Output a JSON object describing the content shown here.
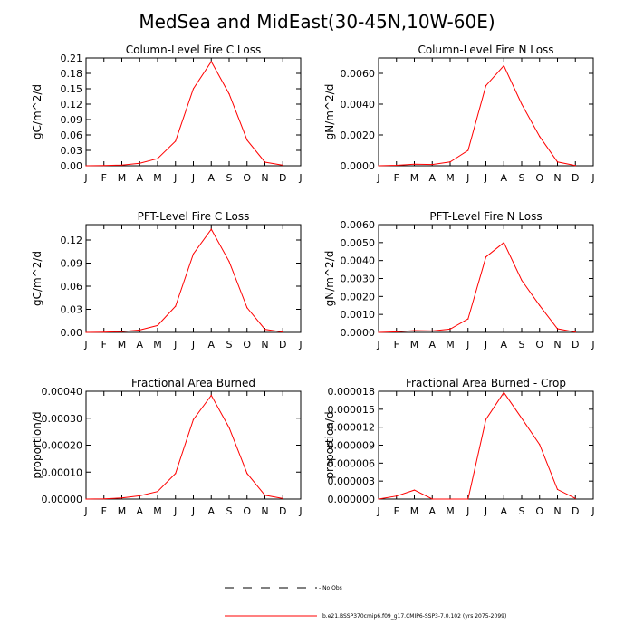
{
  "title": "MedSea and MidEast(30-45N,10W-60E)",
  "legend": {
    "obs_label": "No Obs",
    "model_label": "b.e21.BSSP370cmip6.f09_g17.CMIP6-SSP3-7.0.102 (yrs 2075-2099)",
    "model_color": "#ff0000",
    "obs_color": "#000000"
  },
  "chart_data": [
    {
      "type": "line",
      "title": "Column-Level Fire C Loss",
      "ylabel": "gC/m^2/d",
      "xticks": [
        "J",
        "F",
        "M",
        "A",
        "M",
        "J",
        "J",
        "A",
        "S",
        "O",
        "N",
        "D",
        "J"
      ],
      "ylim": [
        0,
        0.21
      ],
      "yticks": [
        "0.00",
        "0.03",
        "0.06",
        "0.09",
        "0.12",
        "0.15",
        "0.18",
        "0.21"
      ],
      "series": [
        {
          "values": [
            0.0,
            0.0005,
            0.0015,
            0.005,
            0.014,
            0.048,
            0.15,
            0.203,
            0.14,
            0.05,
            0.007,
            0.001
          ]
        }
      ]
    },
    {
      "type": "line",
      "title": "Column-Level Fire N Loss",
      "ylabel": "gN/m^2/d",
      "xticks": [
        "J",
        "F",
        "M",
        "A",
        "M",
        "J",
        "J",
        "A",
        "S",
        "O",
        "N",
        "D",
        "J"
      ],
      "ylim": [
        0,
        0.007
      ],
      "yticks": [
        "0.0000",
        "0.0020",
        "0.0040",
        "0.0060"
      ],
      "series": [
        {
          "values": [
            0.0,
            3e-05,
            0.0001,
            8e-05,
            0.00025,
            0.001,
            0.0052,
            0.0065,
            0.004,
            0.0019,
            0.00025,
            2e-05
          ]
        }
      ]
    },
    {
      "type": "line",
      "title": "PFT-Level Fire C Loss",
      "ylabel": "gC/m^2/d",
      "xticks": [
        "J",
        "F",
        "M",
        "A",
        "M",
        "J",
        "J",
        "A",
        "S",
        "O",
        "N",
        "D",
        "J"
      ],
      "ylim": [
        0,
        0.14
      ],
      "yticks": [
        "0.00",
        "0.03",
        "0.06",
        "0.09",
        "0.12"
      ],
      "series": [
        {
          "values": [
            0.0,
            0.0003,
            0.001,
            0.003,
            0.009,
            0.034,
            0.102,
            0.134,
            0.092,
            0.032,
            0.004,
            0.0005
          ]
        }
      ]
    },
    {
      "type": "line",
      "title": "PFT-Level Fire N Loss",
      "ylabel": "gN/m^2/d",
      "xticks": [
        "J",
        "F",
        "M",
        "A",
        "M",
        "J",
        "J",
        "A",
        "S",
        "O",
        "N",
        "D",
        "J"
      ],
      "ylim": [
        0,
        0.006
      ],
      "yticks": [
        "0.0000",
        "0.0010",
        "0.0020",
        "0.0030",
        "0.0040",
        "0.0050",
        "0.0060"
      ],
      "series": [
        {
          "values": [
            0.0,
            3e-05,
            0.0001,
            8e-05,
            0.00018,
            0.00075,
            0.0042,
            0.005,
            0.0029,
            0.0015,
            0.0002,
            2e-05
          ]
        }
      ]
    },
    {
      "type": "line",
      "title": "Fractional Area Burned",
      "ylabel": "proportion/d",
      "xticks": [
        "J",
        "F",
        "M",
        "A",
        "M",
        "J",
        "J",
        "A",
        "S",
        "O",
        "N",
        "D",
        "J"
      ],
      "ylim": [
        0,
        0.0004
      ],
      "yticks": [
        "0.00000",
        "0.00010",
        "0.00020",
        "0.00030",
        "0.00040"
      ],
      "series": [
        {
          "values": [
            0.0,
            1e-06,
            4e-06,
            1.2e-05,
            2.8e-05,
            9.5e-05,
            0.000295,
            0.000385,
            0.000265,
            9.5e-05,
            1.4e-05,
            2e-06
          ]
        }
      ]
    },
    {
      "type": "line",
      "title": "Fractional Area Burned - Crop",
      "ylabel": "proportion/d",
      "xticks": [
        "J",
        "F",
        "M",
        "A",
        "M",
        "J",
        "J",
        "A",
        "S",
        "O",
        "N",
        "D",
        "J"
      ],
      "ylim": [
        0,
        1.8e-05
      ],
      "yticks": [
        "0.000000",
        "0.000003",
        "0.000006",
        "0.000009",
        "0.000012",
        "0.000015",
        "0.000018"
      ],
      "series": [
        {
          "values": [
            0.0,
            5e-07,
            1.5e-06,
            0.0,
            0.0,
            0.0,
            1.33e-05,
            1.78e-05,
            1.35e-05,
            9.1e-06,
            1.6e-06,
            1e-07
          ]
        }
      ]
    }
  ]
}
